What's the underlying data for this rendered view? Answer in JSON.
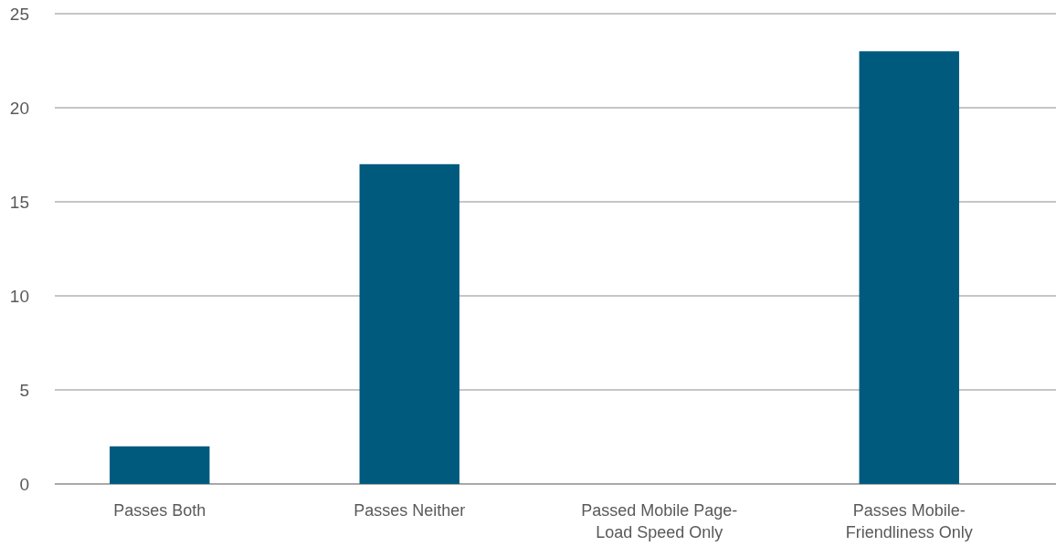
{
  "chart_data": {
    "type": "bar",
    "categories": [
      "Passes Both",
      "Passes Neither",
      "Passed Mobile Page-Load Speed Only",
      "Passes Mobile-Friendliness Only"
    ],
    "values": [
      2,
      17,
      0,
      23
    ],
    "color": "#005a7e",
    "ylim": [
      0,
      25
    ],
    "yticks": [
      0,
      5,
      10,
      15,
      20,
      25
    ],
    "grid": "y"
  }
}
